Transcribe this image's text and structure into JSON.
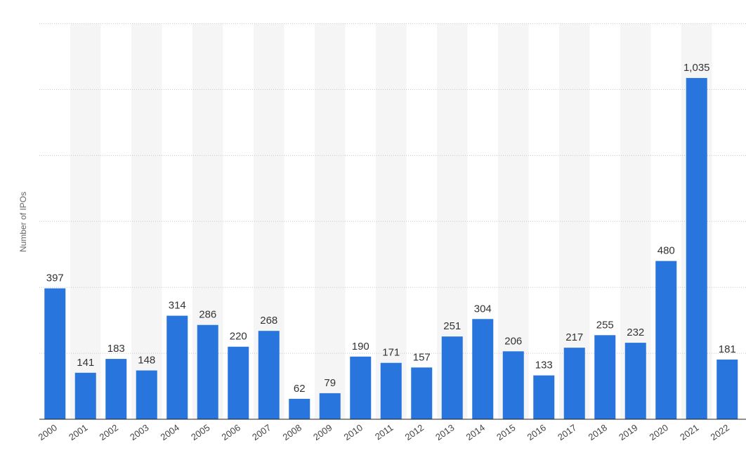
{
  "chart_data": {
    "type": "bar",
    "title": "",
    "xlabel": "",
    "ylabel": "Number of IPOs",
    "categories": [
      "2000",
      "2001",
      "2002",
      "2003",
      "2004",
      "2005",
      "2006",
      "2007",
      "2008",
      "2009",
      "2010",
      "2011",
      "2012",
      "2013",
      "2014",
      "2015",
      "2016",
      "2017",
      "2018",
      "2019",
      "2020",
      "2021",
      "2022"
    ],
    "values": [
      397,
      141,
      183,
      148,
      314,
      286,
      220,
      268,
      62,
      79,
      190,
      171,
      157,
      251,
      304,
      206,
      133,
      217,
      255,
      232,
      480,
      1035,
      181
    ],
    "value_labels": [
      "397",
      "141",
      "183",
      "148",
      "314",
      "286",
      "220",
      "268",
      "62",
      "79",
      "190",
      "171",
      "157",
      "251",
      "304",
      "206",
      "133",
      "217",
      "255",
      "232",
      "480",
      "1,035",
      "181"
    ],
    "ylim": [
      0,
      1200
    ],
    "y_gridlines": [
      200,
      400,
      600,
      800,
      1000,
      1200
    ],
    "grid": true,
    "alternating_column_shading": true,
    "bar_color": "#2876dd",
    "band_color": "#f5f5f5"
  }
}
